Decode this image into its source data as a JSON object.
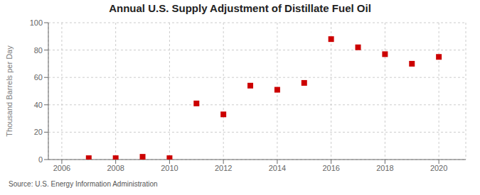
{
  "chart_data": {
    "type": "scatter",
    "title": "Annual U.S. Supply Adjustment of Distillate Fuel Oil",
    "y_label": "Thousand Barrels per Day",
    "annotations": [
      "Source: U.S. Energy Information Administration"
    ],
    "x": [
      2007,
      2008,
      2009,
      2010,
      2011,
      2012,
      2013,
      2014,
      2015,
      2016,
      2017,
      2018,
      2019,
      2020
    ],
    "values": [
      1,
      1,
      2,
      1,
      41,
      33,
      54,
      51,
      56,
      88,
      82,
      77,
      70,
      75
    ],
    "color": "#cc0000",
    "marker": "square",
    "xlim": [
      2005.5,
      2021.0
    ],
    "xticks": [
      2006,
      2008,
      2010,
      2012,
      2014,
      2016,
      2018,
      2020
    ],
    "ylim": [
      0,
      100
    ],
    "yticks": [
      0,
      20,
      40,
      60,
      80,
      100
    ],
    "grid": true
  }
}
